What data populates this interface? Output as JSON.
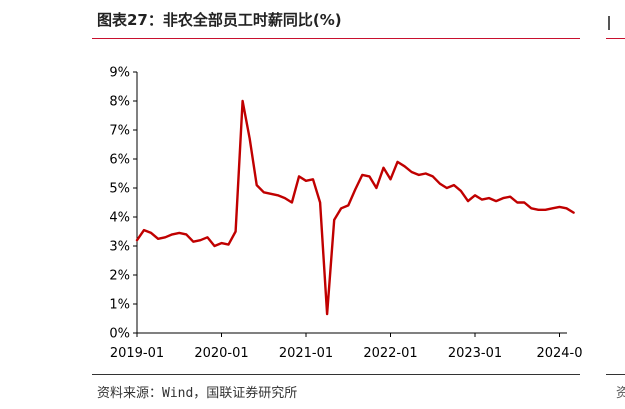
{
  "title": "图表27：非农全部员工时薪同比(%)",
  "source": "资料来源：Wind，国联证券研究所",
  "side_fragment": "资",
  "colors": {
    "line": "#c00000",
    "accent": "#c8102e",
    "axis": "#000000"
  },
  "chart_data": {
    "type": "line",
    "title": "",
    "xlabel": "",
    "ylabel": "",
    "x_ticks": [
      "2019-01",
      "2020-01",
      "2021-01",
      "2022-01",
      "2023-01",
      "2024-0"
    ],
    "y_ticks": [
      "0%",
      "1%",
      "2%",
      "3%",
      "4%",
      "5%",
      "6%",
      "7%",
      "8%",
      "9%"
    ],
    "ylim": [
      0,
      9
    ],
    "grid": false,
    "legend": "none",
    "series": [
      {
        "color": "#c00000",
        "x": [
          "2019-01",
          "2019-02",
          "2019-03",
          "2019-04",
          "2019-05",
          "2019-06",
          "2019-07",
          "2019-08",
          "2019-09",
          "2019-10",
          "2019-11",
          "2019-12",
          "2020-01",
          "2020-02",
          "2020-03",
          "2020-04",
          "2020-05",
          "2020-06",
          "2020-07",
          "2020-08",
          "2020-09",
          "2020-10",
          "2020-11",
          "2020-12",
          "2021-01",
          "2021-02",
          "2021-03",
          "2021-04",
          "2021-05",
          "2021-06",
          "2021-07",
          "2021-08",
          "2021-09",
          "2021-10",
          "2021-11",
          "2021-12",
          "2022-01",
          "2022-02",
          "2022-03",
          "2022-04",
          "2022-05",
          "2022-06",
          "2022-07",
          "2022-08",
          "2022-09",
          "2022-10",
          "2022-11",
          "2022-12",
          "2023-01",
          "2023-02",
          "2023-03",
          "2023-04",
          "2023-05",
          "2023-06",
          "2023-07",
          "2023-08",
          "2023-09",
          "2023-10",
          "2023-11",
          "2023-12",
          "2024-01",
          "2024-02",
          "2024-03"
        ],
        "values": [
          3.2,
          3.55,
          3.45,
          3.25,
          3.3,
          3.4,
          3.45,
          3.4,
          3.15,
          3.2,
          3.3,
          3.0,
          3.1,
          3.05,
          3.5,
          8.0,
          6.7,
          5.1,
          4.85,
          4.8,
          4.75,
          4.65,
          4.5,
          5.4,
          5.25,
          5.3,
          4.5,
          0.65,
          3.9,
          4.3,
          4.4,
          4.95,
          5.45,
          5.4,
          5.0,
          5.7,
          5.3,
          5.9,
          5.75,
          5.55,
          5.45,
          5.5,
          5.4,
          5.15,
          5.0,
          5.1,
          4.9,
          4.55,
          4.75,
          4.6,
          4.65,
          4.55,
          4.65,
          4.7,
          4.5,
          4.5,
          4.3,
          4.25,
          4.25,
          4.3,
          4.35,
          4.3,
          4.15
        ]
      }
    ]
  }
}
